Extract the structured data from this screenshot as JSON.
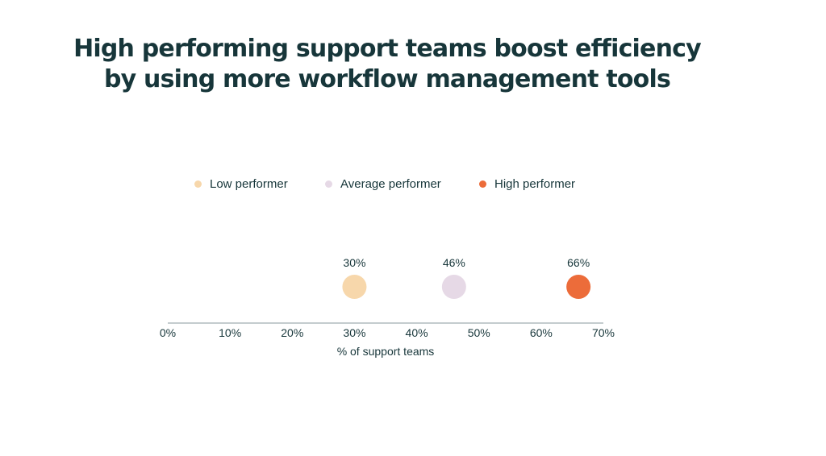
{
  "chart_data": {
    "type": "scatter",
    "title": "High performing support teams boost efficiency by using more workflow management tools",
    "title_lines": [
      "High performing support teams boost efficiency",
      "by using more workflow management tools"
    ],
    "xlabel": "% of support teams",
    "ylabel": "",
    "xlim": [
      0,
      70
    ],
    "x_ticks": [
      "0%",
      "10%",
      "20%",
      "30%",
      "40%",
      "50%",
      "60%",
      "70%"
    ],
    "x_tick_values": [
      0,
      10,
      20,
      30,
      40,
      50,
      60,
      70
    ],
    "legend_position": "top-center",
    "grid": false,
    "series": [
      {
        "name": "Low performer",
        "x": 30,
        "label": "30%",
        "color": "#f7d7ab"
      },
      {
        "name": "Average performer",
        "x": 46,
        "label": "46%",
        "color": "#e6d9e6"
      },
      {
        "name": "High performer",
        "x": 66,
        "label": "66%",
        "color": "#ec6c3a"
      }
    ]
  }
}
